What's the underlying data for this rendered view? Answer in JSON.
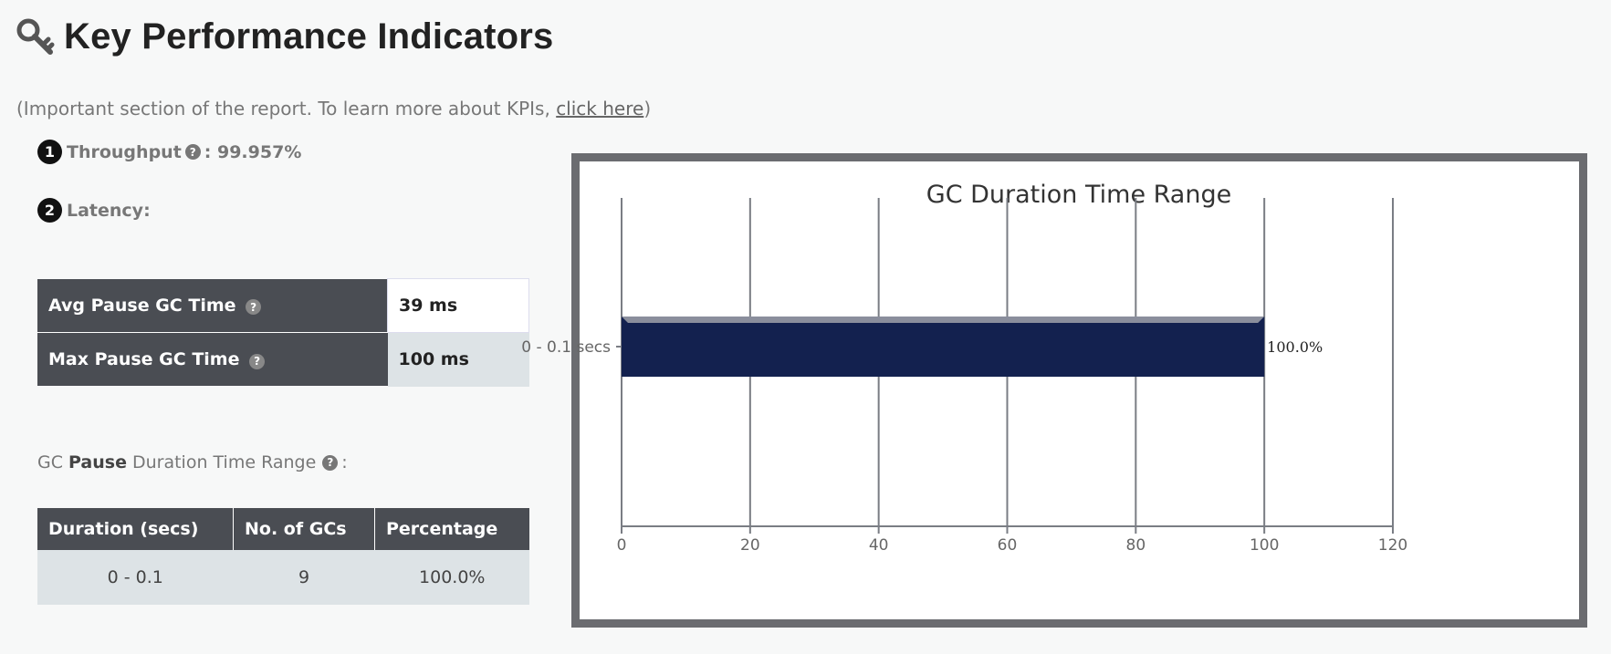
{
  "header": {
    "title": "Key Performance Indicators",
    "icon": "key-icon"
  },
  "subtitle": {
    "prefix": "(Important section of the report. To learn more about KPIs, ",
    "link": "click here",
    "suffix": ")"
  },
  "throughput": {
    "badge": "1",
    "label": "Throughput",
    "value": ": 99.957%"
  },
  "latency": {
    "badge": "2",
    "label": "Latency:",
    "rows": [
      {
        "label": "Avg Pause GC Time",
        "value": "39 ms"
      },
      {
        "label": "Max Pause GC Time",
        "value": "100 ms"
      }
    ]
  },
  "pause_range": {
    "prefix": "GC",
    "bold": "Pause",
    "suffix": "Duration Time Range",
    "colon": ":"
  },
  "duration_table": {
    "headers": [
      "Duration (secs)",
      "No. of GCs",
      "Percentage"
    ],
    "rows": [
      {
        "duration": "0 - 0.1",
        "count": "9",
        "percentage": "100.0%"
      }
    ]
  },
  "chart_data": {
    "type": "bar",
    "orientation": "horizontal",
    "title": "GC Duration Time Range",
    "categories": [
      "0 - 0.1 secs"
    ],
    "values": [
      100.0
    ],
    "value_labels": [
      "100.0%"
    ],
    "xlim": [
      0,
      120
    ],
    "xticks": [
      "0",
      "20",
      "40",
      "60",
      "80",
      "100",
      "120"
    ],
    "grid": true,
    "colors": {
      "bar": "#13214f",
      "grid": "#7a7d84",
      "frame": "#6b6c70"
    }
  }
}
